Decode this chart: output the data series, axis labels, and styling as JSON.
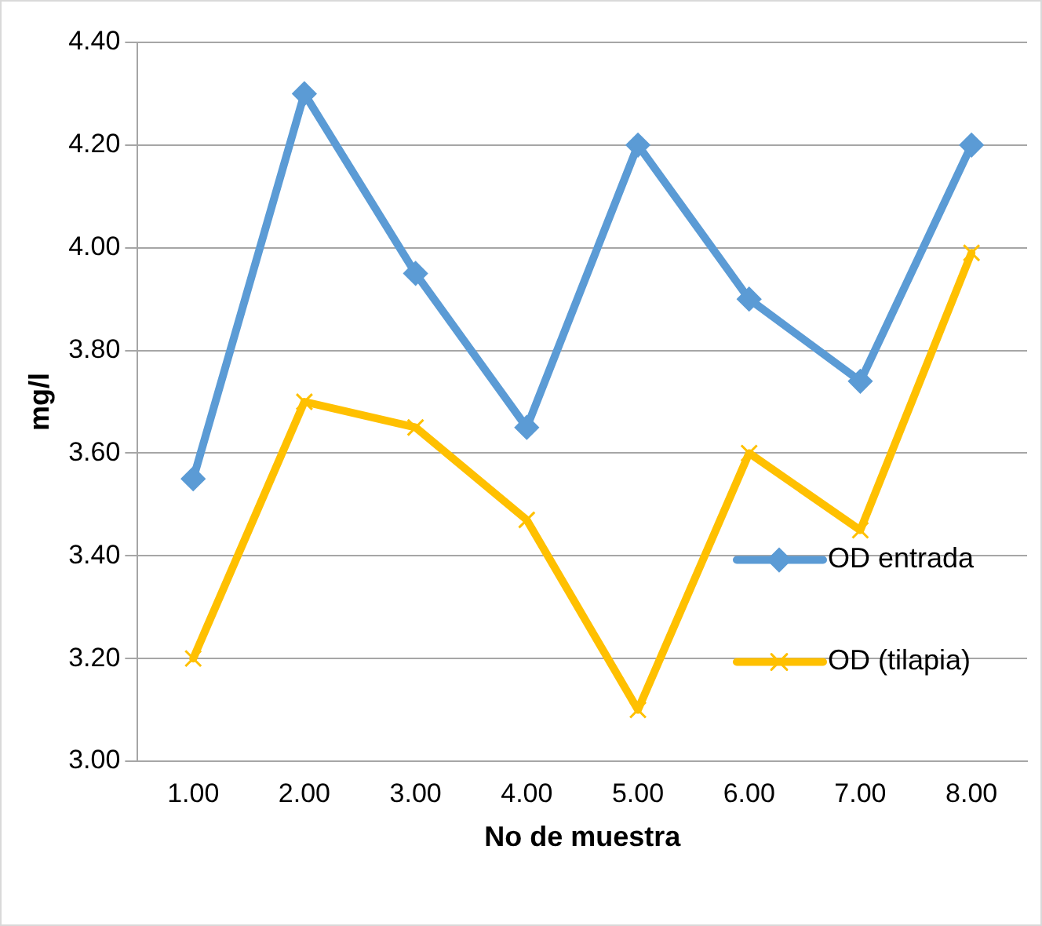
{
  "chart_data": {
    "type": "line",
    "xlabel": "No de muestra",
    "ylabel": "mg/l",
    "categories": [
      "1.00",
      "2.00",
      "3.00",
      "4.00",
      "5.00",
      "6.00",
      "7.00",
      "8.00"
    ],
    "series": [
      {
        "name": "OD entrada",
        "color": "#5b9bd5",
        "marker": "diamond",
        "values": [
          3.55,
          4.3,
          3.95,
          3.65,
          4.2,
          3.9,
          3.74,
          4.2
        ]
      },
      {
        "name": "OD (tilapia)",
        "color": "#ffc000",
        "marker": "cross",
        "values": [
          3.2,
          3.7,
          3.65,
          3.47,
          3.1,
          3.6,
          3.45,
          3.99
        ]
      }
    ],
    "ylim": [
      3.0,
      4.4
    ],
    "yticks": [
      {
        "value": 3.0,
        "label": "3.00"
      },
      {
        "value": 3.2,
        "label": "3.20"
      },
      {
        "value": 3.4,
        "label": "3.40"
      },
      {
        "value": 3.6,
        "label": "3.60"
      },
      {
        "value": 3.8,
        "label": "3.80"
      },
      {
        "value": 4.0,
        "label": "4.00"
      },
      {
        "value": 4.2,
        "label": "4.20"
      },
      {
        "value": 4.4,
        "label": "4.40"
      }
    ],
    "grid": "y",
    "legend": "right",
    "line_style": "solid"
  }
}
